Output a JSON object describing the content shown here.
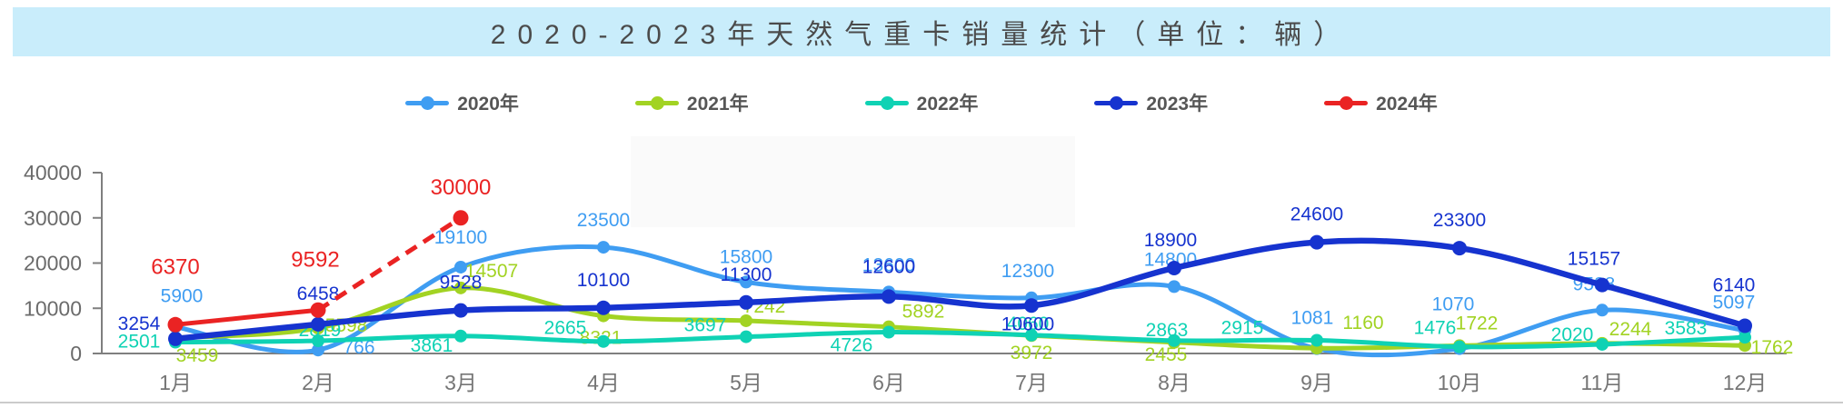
{
  "title": "2020-2023年天然气重卡销量统计（单位：辆）",
  "chart_data": {
    "type": "line",
    "title": "2020-2023年天然气重卡销量统计（单位：辆）",
    "categories": [
      "1月",
      "2月",
      "3月",
      "4月",
      "5月",
      "6月",
      "7月",
      "8月",
      "9月",
      "10月",
      "11月",
      "12月"
    ],
    "series": [
      {
        "name": "2020年",
        "color": "#3f9df2",
        "values": [
          5900,
          766,
          19100,
          23500,
          15800,
          13600,
          12300,
          14800,
          1081,
          1070,
          9588,
          5097
        ]
      },
      {
        "name": "2021年",
        "color": "#a2d323",
        "values": [
          3459,
          5598,
          14507,
          8321,
          7242,
          5892,
          3972,
          2455,
          1160,
          1722,
          2244,
          1762
        ]
      },
      {
        "name": "2022年",
        "color": "#0fd2b4",
        "values": [
          2501,
          2819,
          3861,
          2665,
          3697,
          4726,
          4060,
          2863,
          2915,
          1476,
          2020,
          3583
        ]
      },
      {
        "name": "2023年",
        "color": "#1633cf",
        "values": [
          3254,
          6458,
          9528,
          10100,
          11300,
          12600,
          10600,
          18900,
          24600,
          23300,
          15157,
          6140
        ]
      },
      {
        "name": "2024年",
        "color": "#ea2323",
        "values": [
          6370,
          9592,
          30000,
          null,
          null,
          null,
          null,
          null,
          null,
          null,
          null,
          null
        ],
        "dashed_from_index": 1
      }
    ],
    "ylim": [
      0,
      40000
    ],
    "yticks": [
      0,
      10000,
      20000,
      30000,
      40000
    ],
    "xlabel": "",
    "ylabel": "",
    "grid": false,
    "legend_position": "top"
  }
}
